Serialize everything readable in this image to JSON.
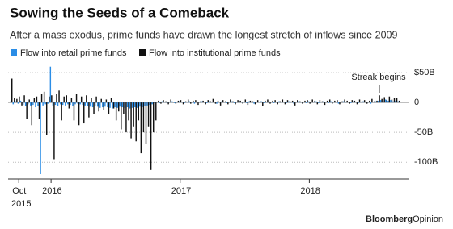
{
  "chart_data": {
    "type": "bar",
    "title": "Sowing the Seeds of a Comeback",
    "subtitle": "After a mass exodus, prime funds have drawn the longest stretch of inflows since 2009",
    "annotation": "Streak begins",
    "first_year_label": "2015",
    "source_brand": "Bloomberg",
    "source_section": "Opinion",
    "categories": [
      null,
      null,
      null,
      "Oct",
      null,
      null,
      null,
      null,
      null,
      null,
      null,
      null,
      null,
      null,
      null,
      null,
      "2016",
      null,
      null,
      null,
      null,
      null,
      null,
      null,
      null,
      null,
      null,
      null,
      null,
      null,
      null,
      null,
      null,
      null,
      null,
      null,
      null,
      null,
      null,
      null,
      null,
      null,
      null,
      null,
      null,
      null,
      null,
      null,
      null,
      null,
      null,
      null,
      null,
      null,
      null,
      null,
      null,
      null,
      null,
      null,
      null,
      null,
      null,
      null,
      null,
      null,
      null,
      null,
      "2017",
      null,
      null,
      null,
      null,
      null,
      null,
      null,
      null,
      null,
      null,
      null,
      null,
      null,
      null,
      null,
      null,
      null,
      null,
      null,
      null,
      null,
      null,
      null,
      null,
      null,
      null,
      null,
      null,
      null,
      null,
      null,
      null,
      null,
      null,
      null,
      null,
      null,
      null,
      null,
      null,
      null,
      null,
      null,
      null,
      null,
      null,
      null,
      null,
      null,
      null,
      null,
      "2018",
      null,
      null,
      null,
      null,
      null,
      null,
      null,
      null,
      null,
      null,
      null,
      null,
      null,
      null,
      null,
      null,
      null,
      null,
      null,
      null,
      null,
      null,
      null,
      null,
      null,
      null,
      null,
      null,
      null,
      null,
      null,
      null,
      null,
      null,
      null,
      null
    ],
    "series": [
      {
        "name": "Flow into retail prime funds",
        "color": "#2a8de6",
        "values": [
          2,
          -3,
          2,
          -2,
          3,
          -4,
          -6,
          -3,
          -5,
          -4,
          -8,
          -6,
          -120,
          -5,
          -3,
          -2,
          60,
          -5,
          -4,
          -6,
          -3,
          -4,
          -5,
          -3,
          -4,
          -6,
          -3,
          -2,
          -3,
          -4,
          -5,
          -6,
          -7,
          -8,
          -6,
          -7,
          -9,
          -8,
          -7,
          -8,
          -9,
          -10,
          -8,
          -9,
          -7,
          -8,
          -9,
          -8,
          -10,
          -9,
          -8,
          -9,
          -7,
          -8,
          -6,
          -5,
          -4,
          -3,
          -1,
          1,
          -1,
          2,
          1,
          -1,
          1,
          2,
          -1,
          1,
          2,
          1,
          -1,
          1,
          2,
          1,
          -2,
          1,
          1,
          2,
          1,
          -1,
          2,
          1,
          1,
          -2,
          1,
          2,
          1,
          -1,
          1,
          2,
          -1,
          1,
          2,
          1,
          1,
          -1,
          2,
          1,
          -2,
          1,
          1,
          2,
          -1,
          1,
          2,
          1,
          -1,
          1,
          2,
          1,
          1,
          -1,
          2,
          1,
          -2,
          1,
          2,
          1,
          1,
          -1,
          2,
          1,
          1,
          2,
          -1,
          1,
          2,
          1,
          -1,
          2,
          1,
          1,
          -2,
          1,
          2,
          1,
          1,
          -1,
          2,
          1,
          -1,
          1,
          2,
          1,
          1,
          -2,
          1,
          2,
          3,
          4,
          2,
          5,
          3,
          4,
          2,
          3,
          2
        ]
      },
      {
        "name": "Flow into institutional prime funds",
        "color": "#111111",
        "values": [
          40,
          8,
          6,
          10,
          -5,
          12,
          -28,
          5,
          -38,
          8,
          10,
          -28,
          15,
          18,
          -55,
          10,
          12,
          -95,
          15,
          20,
          -30,
          10,
          12,
          -10,
          8,
          -30,
          15,
          -38,
          10,
          -35,
          12,
          -25,
          8,
          -20,
          10,
          -15,
          6,
          -12,
          5,
          -20,
          8,
          -10,
          -30,
          -15,
          -45,
          -20,
          -50,
          -30,
          -60,
          -40,
          -65,
          -30,
          -85,
          -50,
          -70,
          -40,
          -113,
          -50,
          -30,
          3,
          -2,
          4,
          2,
          -3,
          5,
          1,
          -2,
          3,
          4,
          -3,
          2,
          5,
          -2,
          3,
          4,
          -4,
          2,
          3,
          -3,
          4,
          2,
          6,
          -2,
          3,
          -5,
          4,
          2,
          -3,
          5,
          2,
          -3,
          4,
          3,
          -2,
          5,
          -4,
          3,
          2,
          -3,
          4,
          2,
          -6,
          3,
          5,
          -2,
          3,
          4,
          -3,
          2,
          5,
          -3,
          4,
          2,
          3,
          -5,
          4,
          2,
          -2,
          3,
          4,
          -2,
          5,
          3,
          -3,
          4,
          2,
          -4,
          3,
          5,
          -2,
          3,
          4,
          -3,
          2,
          5,
          3,
          -2,
          4,
          3,
          -3,
          5,
          2,
          4,
          -2,
          3,
          6,
          2,
          3,
          12,
          6,
          9,
          4,
          10,
          5,
          8,
          7,
          3
        ]
      }
    ],
    "ylim": [
      -120,
      65
    ],
    "yticks": [
      {
        "value": 50,
        "label": "$50B"
      },
      0,
      {
        "value": -50,
        "label": "-50B"
      },
      {
        "value": -100,
        "label": "-100B"
      }
    ],
    "grid": true
  }
}
